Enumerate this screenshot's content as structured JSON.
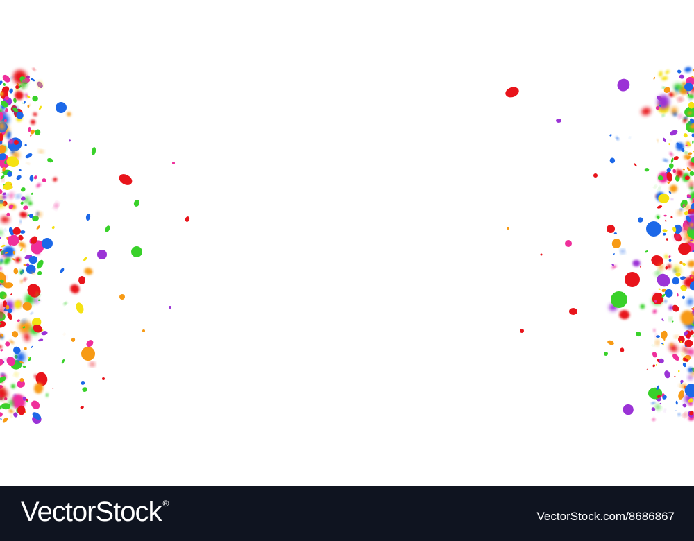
{
  "footer": {
    "brand": "VectorStock",
    "reg_mark": "®",
    "image_id": "VectorStock.com/8686867"
  },
  "palette": {
    "red": "#e8141b",
    "blue": "#1c68e8",
    "green": "#39d12a",
    "magenta": "#ef2f9b",
    "orange": "#f79a14",
    "purple": "#9b33d6",
    "yellow": "#f5e213",
    "dark": "#222222",
    "footer_bg": "#0f1420"
  }
}
